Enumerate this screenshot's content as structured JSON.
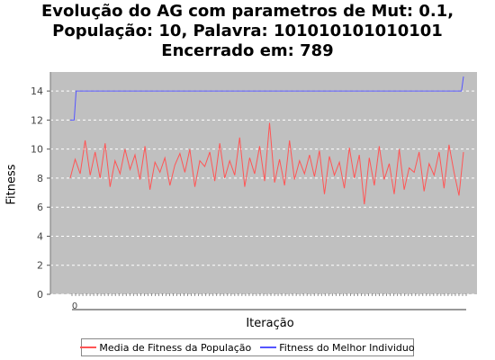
{
  "chart_data": {
    "type": "line",
    "title_lines": [
      "Evolução do AG com parametros de Mut: 0.1,",
      "População: 10, Palavra: 101010101010101",
      "Encerrado em: 789"
    ],
    "xlabel": "Iteração",
    "ylabel": "Fitness",
    "xlim": [
      0,
      789
    ],
    "ylim": [
      0,
      15
    ],
    "y_ticks": [
      0,
      2,
      4,
      6,
      8,
      10,
      12,
      14
    ],
    "x_tick_labels_visible": [
      "0"
    ],
    "grid": true,
    "legend_position": "bottom",
    "colors": {
      "plot_bg": "#c0c0c0",
      "grid": "#ffffff"
    },
    "series": [
      {
        "name": "Media de Fitness da População",
        "color": "#ff5555",
        "x": [
          0,
          10,
          20,
          30,
          40,
          50,
          60,
          70,
          80,
          90,
          100,
          110,
          120,
          130,
          140,
          150,
          160,
          170,
          180,
          190,
          200,
          210,
          220,
          230,
          240,
          250,
          260,
          270,
          280,
          290,
          300,
          310,
          320,
          330,
          340,
          350,
          360,
          370,
          380,
          390,
          400,
          410,
          420,
          430,
          440,
          450,
          460,
          470,
          480,
          490,
          500,
          510,
          520,
          530,
          540,
          550,
          560,
          570,
          580,
          590,
          600,
          610,
          620,
          630,
          640,
          650,
          660,
          670,
          680,
          690,
          700,
          710,
          720,
          730,
          740,
          750,
          760,
          770,
          780,
          789
        ],
        "values": [
          8.0,
          9.3,
          8.3,
          10.6,
          8.2,
          9.8,
          8.0,
          10.4,
          7.4,
          9.2,
          8.3,
          10.0,
          8.6,
          9.6,
          7.9,
          10.2,
          7.2,
          9.1,
          8.4,
          9.4,
          7.5,
          8.9,
          9.7,
          8.4,
          10.0,
          7.4,
          9.2,
          8.8,
          9.8,
          7.8,
          10.4,
          8.0,
          9.2,
          8.2,
          10.8,
          7.4,
          9.4,
          8.3,
          10.2,
          7.8,
          11.8,
          7.7,
          9.3,
          7.5,
          10.6,
          7.9,
          9.2,
          8.3,
          9.6,
          8.1,
          9.9,
          6.9,
          9.5,
          8.2,
          9.1,
          7.3,
          10.1,
          8.0,
          9.6,
          6.2,
          9.4,
          7.5,
          10.2,
          7.9,
          9.0,
          6.9,
          10.0,
          7.2,
          8.7,
          8.4,
          9.8,
          7.1,
          9.0,
          8.2,
          9.8,
          7.3,
          10.3,
          8.4,
          6.8,
          9.8
        ]
      },
      {
        "name": "Fitness do Melhor Individuo",
        "color": "#5555ff",
        "x": [
          0,
          4,
          8,
          12,
          780,
          785,
          789
        ],
        "values": [
          12,
          12,
          12,
          14,
          14,
          14,
          15
        ]
      }
    ]
  }
}
